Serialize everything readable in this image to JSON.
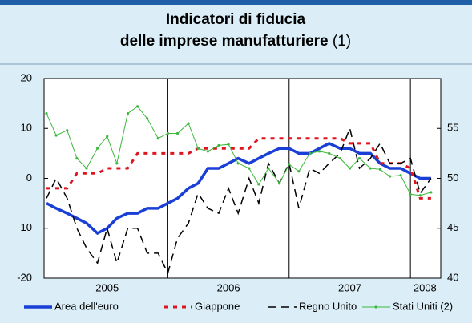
{
  "chart_data": {
    "type": "line",
    "title": "Indicatori di fiducia",
    "title_line2": "delle imprese manufatturiere",
    "title_note": "(1)",
    "x": [
      2005.0,
      2005.08,
      2005.17,
      2005.25,
      2005.33,
      2005.42,
      2005.5,
      2005.58,
      2005.67,
      2005.75,
      2005.83,
      2005.92,
      2006.0,
      2006.08,
      2006.17,
      2006.25,
      2006.33,
      2006.42,
      2006.5,
      2006.58,
      2006.67,
      2006.75,
      2006.83,
      2006.92,
      2007.0,
      2007.08,
      2007.17,
      2007.25,
      2007.33,
      2007.42,
      2007.5,
      2007.58,
      2007.67,
      2007.75,
      2007.83,
      2007.92,
      2008.0,
      2008.08,
      2008.17
    ],
    "xlim": [
      2004.98,
      2008.25
    ],
    "xticks": [
      {
        "value": 2005.5,
        "label": "2005"
      },
      {
        "value": 2006.5,
        "label": "2006"
      },
      {
        "value": 2007.5,
        "label": "2007"
      },
      {
        "value": 2008.12,
        "label": "2008"
      }
    ],
    "xgrid": [
      2006,
      2007,
      2008
    ],
    "ylim": [
      -20,
      20
    ],
    "yticks": [
      -20,
      -10,
      0,
      10,
      20
    ],
    "y2lim": [
      40,
      60
    ],
    "y2ticks": [
      40,
      45,
      50,
      55
    ],
    "series": [
      {
        "name": "Area dell'euro",
        "color": "#1a3fd6",
        "style": "solid",
        "width": 3.5,
        "values": [
          -5,
          -6,
          -7,
          -8,
          -9,
          -11,
          -10,
          -8,
          -7,
          -7,
          -6,
          -6,
          -5,
          -4,
          -2,
          -1,
          2,
          2,
          3,
          4,
          3,
          4,
          5,
          6,
          6,
          5,
          5,
          6,
          7,
          6,
          6,
          5,
          5,
          3,
          2,
          2,
          1,
          0,
          0
        ]
      },
      {
        "name": "Giappone",
        "color": "#e0141e",
        "style": "dotted",
        "width": 3,
        "values": [
          -2,
          -2,
          -2,
          1,
          1,
          1,
          2,
          2,
          2,
          5,
          5,
          5,
          5,
          5,
          5,
          6,
          6,
          6,
          6,
          6,
          6,
          8,
          8,
          8,
          8,
          8,
          8,
          8,
          8,
          8,
          7,
          7,
          7,
          3,
          3,
          3,
          2,
          -4,
          -4
        ]
      },
      {
        "name": "Regno Unito",
        "color": "#000000",
        "style": "dashed",
        "width": 1.5,
        "values": [
          -4,
          0,
          -4,
          -10,
          -14,
          -17,
          -10,
          -17,
          -10,
          -10,
          -15,
          -15,
          -19,
          -12,
          -9,
          -3,
          -6,
          -7,
          -2,
          -7,
          0,
          -5,
          3,
          -1,
          3,
          -6,
          2,
          1,
          3,
          5,
          10,
          2,
          4,
          7,
          3,
          3,
          4,
          -3,
          0
        ]
      },
      {
        "name": "Stati Uniti (2)",
        "color": "#3cb83c",
        "style": "solid",
        "width": 1,
        "axis": "y2",
        "markers": true,
        "values": [
          56.5,
          54.3,
          54.8,
          52,
          51,
          53,
          54.2,
          51.5,
          56.5,
          57.2,
          56,
          54,
          54.5,
          54.5,
          55.5,
          53,
          52.7,
          53.3,
          53.4,
          51.5,
          51,
          49.4,
          51,
          49.5,
          51.4,
          50.7,
          52.5,
          52.7,
          52.5,
          52,
          51,
          52,
          51,
          50.9,
          50.2,
          50.3,
          48.4,
          48.3,
          48.6
        ]
      }
    ]
  }
}
